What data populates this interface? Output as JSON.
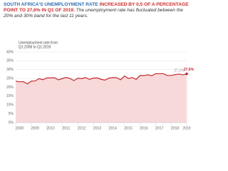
{
  "chart_data": {
    "type": "area",
    "title_lead": "SOUTH AFRICA'S UNEMPLOYMENT RATE",
    "title_highlight": "INCREASED BY 0,5 OF A PERCENTAGE POINT TO 27,6% IN Q1 OF 2019.",
    "subtitle": "The unemployment rate has fluctuated between the 20% and 30% band for the last 11 years.",
    "annotation": [
      "Unemployment rate from",
      "Q1:2008 to Q1:2019"
    ],
    "categories": [
      null,
      "2008",
      null,
      null,
      null,
      "2009",
      null,
      null,
      null,
      "2010",
      null,
      null,
      null,
      "2011",
      null,
      null,
      null,
      "2012",
      null,
      null,
      null,
      "2013",
      null,
      null,
      null,
      "2014",
      null,
      null,
      null,
      "2015",
      null,
      null,
      null,
      "2016",
      null,
      null,
      null,
      "2017",
      null,
      null,
      null,
      "2018",
      null,
      null,
      "2019"
    ],
    "series": [
      {
        "color": "#c8282e",
        "fill": "#f7d9d9",
        "values": [
          23.5,
          23.1,
          23.2,
          21.9,
          23.5,
          23.6,
          24.9,
          24.3,
          25.3,
          25.3,
          25.4,
          24.2,
          25.0,
          25.6,
          25.0,
          23.8,
          25.2,
          24.9,
          25.5,
          24.5,
          25.2,
          25.3,
          24.5,
          24.1,
          25.2,
          25.5,
          25.4,
          24.3,
          26.4,
          25.0,
          25.5,
          24.5,
          26.7,
          26.6,
          27.1,
          26.5,
          27.7,
          27.7,
          27.7,
          26.7,
          26.7,
          27.2,
          27.5,
          27.1,
          27.6
        ],
        "value_labels": [
          null,
          null,
          null,
          null,
          null,
          null,
          null,
          null,
          null,
          null,
          null,
          null,
          null,
          null,
          null,
          null,
          null,
          null,
          null,
          null,
          null,
          null,
          null,
          null,
          null,
          null,
          null,
          null,
          null,
          null,
          null,
          null,
          null,
          null,
          null,
          null,
          null,
          null,
          null,
          null,
          null,
          null,
          null,
          "27,1%",
          "27,6%"
        ]
      }
    ],
    "ylim": [
      0,
      40
    ],
    "yticks": [
      {
        "value": 0,
        "label": "0%"
      },
      {
        "value": 5,
        "label": "5%"
      },
      {
        "value": 10,
        "label": "10%"
      },
      {
        "value": 15,
        "label": "15%"
      },
      {
        "value": 20,
        "label": "20%"
      },
      {
        "value": 25,
        "label": "25%"
      },
      {
        "value": 30,
        "label": "30%"
      },
      {
        "value": 35,
        "label": "35%"
      },
      {
        "value": 40,
        "label": "40%"
      }
    ],
    "grid": true
  }
}
